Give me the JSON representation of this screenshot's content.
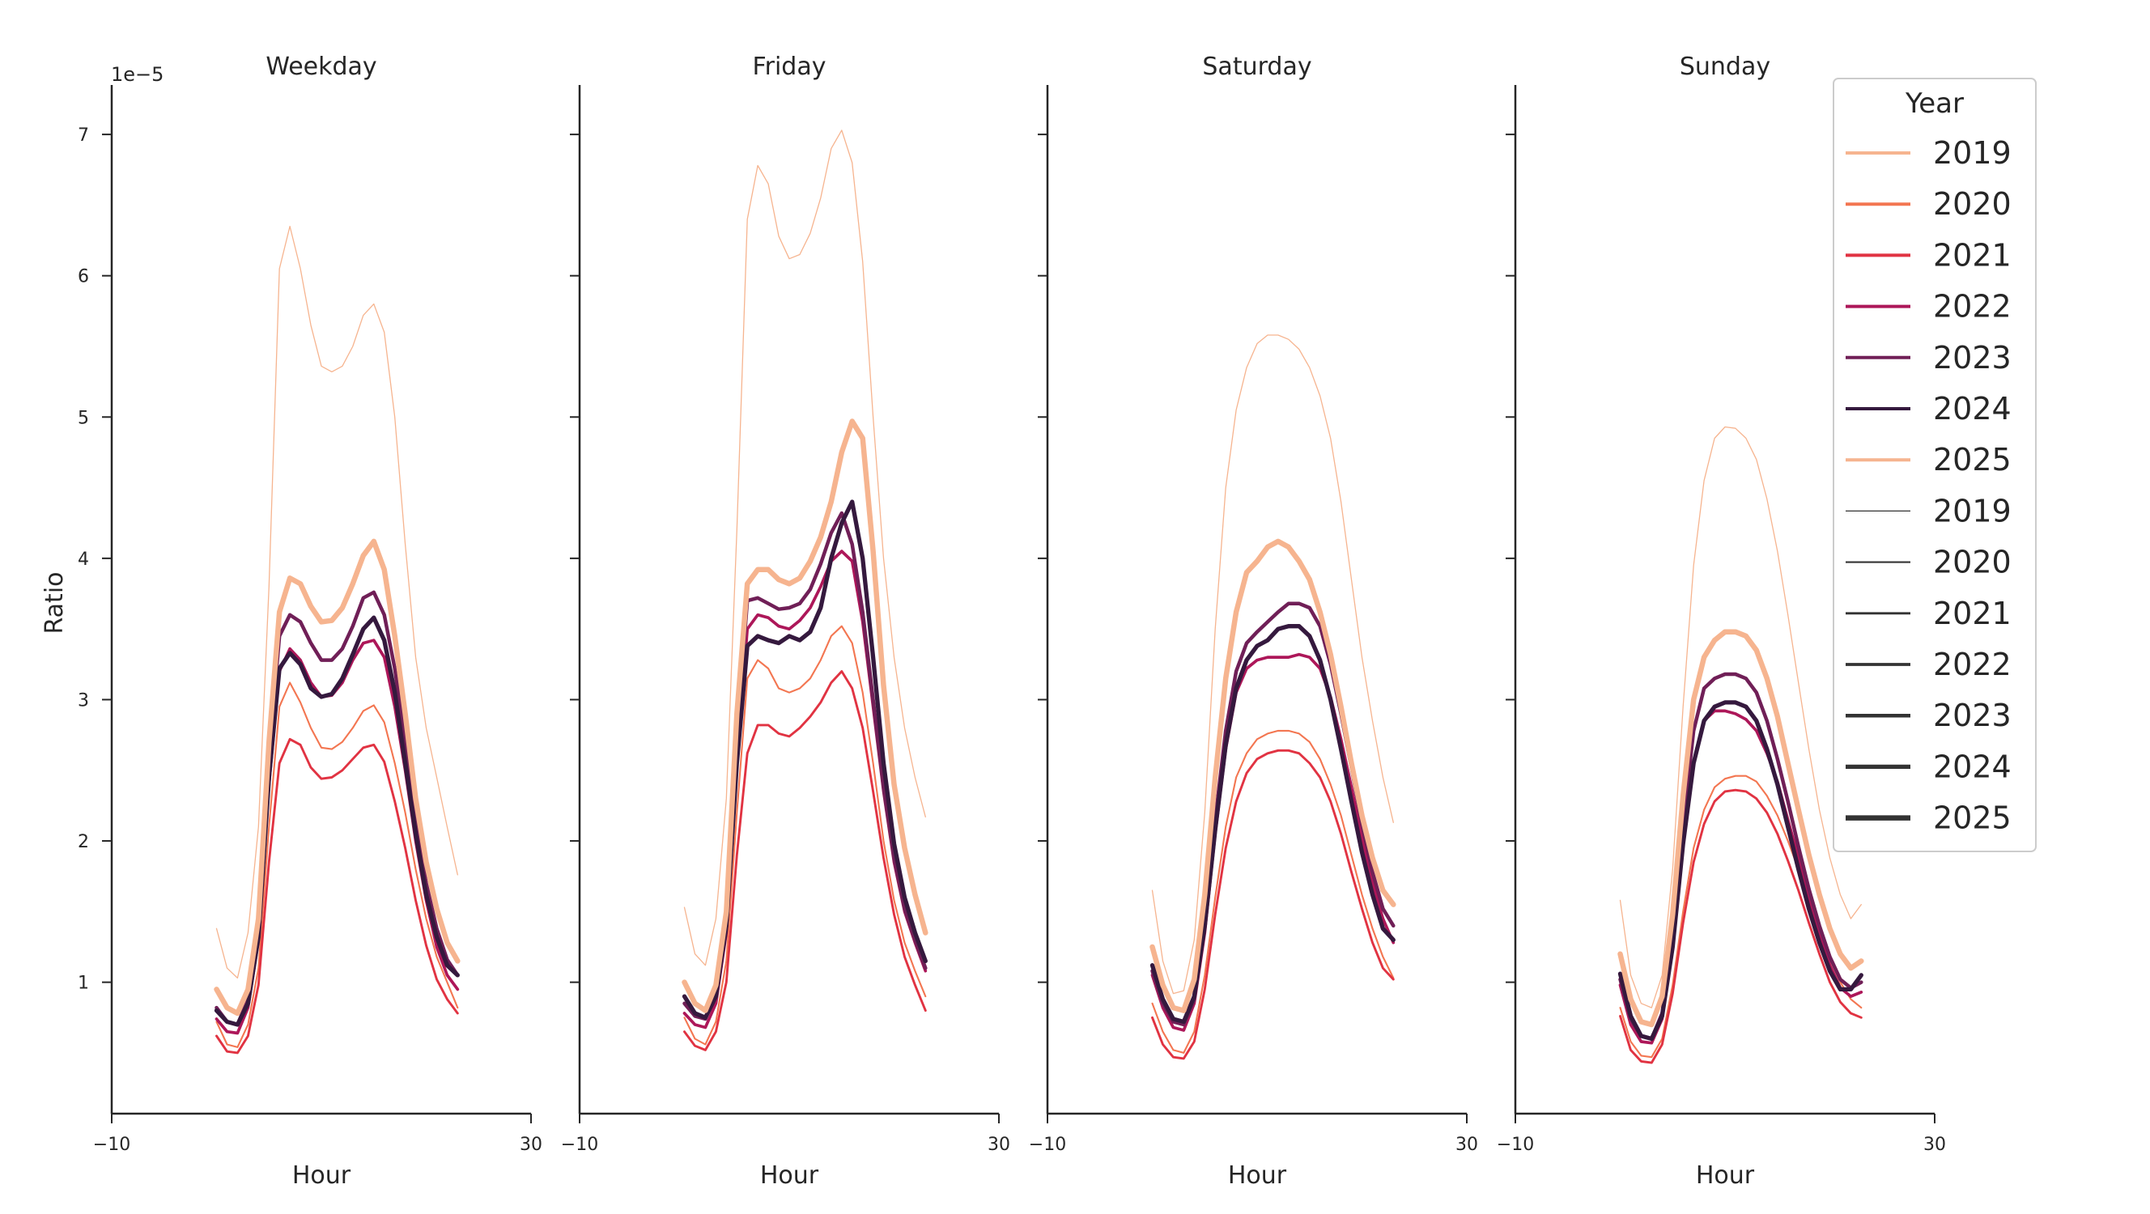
{
  "chart_data": {
    "type": "line",
    "ylabel": "Ratio",
    "xlabel": "Hour",
    "y_offset_label": "1e−5",
    "xlim": [
      -10,
      30
    ],
    "xticks": [
      -10,
      30
    ],
    "xtick_labels": [
      "−10",
      "30"
    ],
    "ylim": [
      0.07,
      7.35
    ],
    "yticks": [
      1,
      2,
      3,
      4,
      5,
      6,
      7
    ],
    "ytick_labels": [
      "1",
      "2",
      "3",
      "4",
      "5",
      "6",
      "7"
    ],
    "x": [
      0,
      1,
      2,
      3,
      4,
      5,
      6,
      7,
      8,
      9,
      10,
      11,
      12,
      13,
      14,
      15,
      16,
      17,
      18,
      19,
      20,
      21,
      22,
      23
    ],
    "grid": false,
    "legend": {
      "title": "Year",
      "placement": "upper right",
      "hue_entries": [
        {
          "label": "2019",
          "color": "#f6b48f"
        },
        {
          "label": "2020",
          "color": "#f37651"
        },
        {
          "label": "2021",
          "color": "#e13342"
        },
        {
          "label": "2022",
          "color": "#ad1759"
        },
        {
          "label": "2023",
          "color": "#701f57"
        },
        {
          "label": "2024",
          "color": "#35193e"
        },
        {
          "label": "2025",
          "color": "#f6b48f"
        }
      ],
      "size_entries": [
        {
          "label": "2019",
          "color": "#333333"
        },
        {
          "label": "2020",
          "color": "#333333"
        },
        {
          "label": "2021",
          "color": "#333333"
        },
        {
          "label": "2022",
          "color": "#333333"
        },
        {
          "label": "2023",
          "color": "#333333"
        },
        {
          "label": "2024",
          "color": "#333333"
        },
        {
          "label": "2025",
          "color": "#333333"
        }
      ]
    },
    "panels": [
      {
        "title": "Weekday",
        "series": [
          {
            "name": "2019",
            "color": "#f6b48f",
            "values": [
              1.38,
              1.1,
              1.03,
              1.35,
              2.1,
              3.8,
              6.05,
              6.35,
              6.05,
              5.65,
              5.36,
              5.32,
              5.36,
              5.5,
              5.72,
              5.8,
              5.6,
              5.0,
              4.1,
              3.3,
              2.8,
              2.45,
              2.1,
              1.76
            ]
          },
          {
            "name": "2020",
            "color": "#f37651",
            "values": [
              0.72,
              0.56,
              0.54,
              0.7,
              1.1,
              2.1,
              2.95,
              3.12,
              2.98,
              2.8,
              2.66,
              2.65,
              2.7,
              2.8,
              2.92,
              2.96,
              2.84,
              2.55,
              2.2,
              1.8,
              1.45,
              1.18,
              1.0,
              0.82
            ]
          },
          {
            "name": "2021",
            "color": "#e13342",
            "values": [
              0.62,
              0.51,
              0.5,
              0.62,
              0.98,
              1.85,
              2.55,
              2.72,
              2.68,
              2.52,
              2.44,
              2.45,
              2.5,
              2.58,
              2.66,
              2.68,
              2.56,
              2.28,
              1.95,
              1.58,
              1.26,
              1.02,
              0.88,
              0.78
            ]
          },
          {
            "name": "2022",
            "color": "#ad1759",
            "values": [
              0.74,
              0.65,
              0.64,
              0.82,
              1.3,
              2.4,
              3.2,
              3.36,
              3.28,
              3.12,
              3.02,
              3.03,
              3.12,
              3.28,
              3.4,
              3.42,
              3.3,
              2.95,
              2.5,
              2.0,
              1.58,
              1.25,
              1.05,
              0.95
            ]
          },
          {
            "name": "2023",
            "color": "#701f57",
            "values": [
              0.82,
              0.72,
              0.7,
              0.88,
              1.4,
              2.6,
              3.45,
              3.6,
              3.55,
              3.4,
              3.28,
              3.28,
              3.36,
              3.52,
              3.72,
              3.76,
              3.6,
              3.22,
              2.7,
              2.15,
              1.7,
              1.38,
              1.16,
              1.05
            ]
          },
          {
            "name": "2024",
            "color": "#35193e",
            "values": [
              0.8,
              0.72,
              0.7,
              0.85,
              1.32,
              2.45,
              3.22,
              3.33,
              3.25,
              3.08,
              3.02,
              3.04,
              3.15,
              3.32,
              3.5,
              3.58,
              3.42,
              3.05,
              2.55,
              2.05,
              1.62,
              1.32,
              1.12,
              1.05
            ]
          },
          {
            "name": "2025",
            "color": "#f6b48f",
            "values": [
              0.95,
              0.82,
              0.78,
              0.95,
              1.45,
              2.7,
              3.62,
              3.86,
              3.82,
              3.66,
              3.55,
              3.56,
              3.65,
              3.82,
              4.02,
              4.12,
              3.92,
              3.45,
              2.9,
              2.3,
              1.85,
              1.52,
              1.28,
              1.15
            ]
          }
        ]
      },
      {
        "title": "Friday",
        "series": [
          {
            "name": "2019",
            "color": "#f6b48f",
            "values": [
              1.53,
              1.2,
              1.12,
              1.45,
              2.3,
              4.2,
              6.4,
              6.78,
              6.65,
              6.28,
              6.12,
              6.15,
              6.3,
              6.55,
              6.9,
              7.03,
              6.8,
              6.1,
              5.0,
              4.0,
              3.3,
              2.8,
              2.45,
              2.17
            ]
          },
          {
            "name": "2020",
            "color": "#f37651",
            "values": [
              0.75,
              0.6,
              0.56,
              0.72,
              1.15,
              2.2,
              3.15,
              3.28,
              3.22,
              3.08,
              3.05,
              3.08,
              3.15,
              3.28,
              3.45,
              3.52,
              3.4,
              3.05,
              2.55,
              2.0,
              1.58,
              1.28,
              1.08,
              0.9
            ]
          },
          {
            "name": "2021",
            "color": "#e13342",
            "values": [
              0.65,
              0.55,
              0.52,
              0.65,
              1.0,
              1.9,
              2.62,
              2.82,
              2.82,
              2.76,
              2.74,
              2.8,
              2.88,
              2.98,
              3.12,
              3.2,
              3.08,
              2.8,
              2.35,
              1.88,
              1.48,
              1.18,
              0.98,
              0.8
            ]
          },
          {
            "name": "2022",
            "color": "#ad1759",
            "values": [
              0.78,
              0.7,
              0.68,
              0.85,
              1.35,
              2.55,
              3.5,
              3.6,
              3.58,
              3.52,
              3.5,
              3.56,
              3.65,
              3.8,
              3.98,
              4.05,
              3.98,
              3.55,
              2.95,
              2.35,
              1.85,
              1.5,
              1.28,
              1.08
            ]
          },
          {
            "name": "2023",
            "color": "#701f57",
            "values": [
              0.85,
              0.76,
              0.74,
              0.92,
              1.45,
              2.75,
              3.7,
              3.72,
              3.68,
              3.64,
              3.65,
              3.68,
              3.78,
              3.96,
              4.18,
              4.32,
              4.1,
              3.62,
              3.0,
              2.38,
              1.88,
              1.52,
              1.3,
              1.1
            ]
          },
          {
            "name": "2024",
            "color": "#35193e",
            "values": [
              0.9,
              0.78,
              0.75,
              0.9,
              1.4,
              2.55,
              3.38,
              3.45,
              3.42,
              3.4,
              3.45,
              3.42,
              3.48,
              3.65,
              4.0,
              4.25,
              4.4,
              4.0,
              3.3,
              2.55,
              1.98,
              1.6,
              1.35,
              1.15
            ]
          },
          {
            "name": "2025",
            "color": "#f6b48f",
            "values": [
              1.0,
              0.85,
              0.8,
              0.98,
              1.5,
              2.9,
              3.82,
              3.92,
              3.92,
              3.85,
              3.82,
              3.86,
              3.98,
              4.15,
              4.4,
              4.75,
              4.97,
              4.85,
              4.05,
              3.1,
              2.4,
              1.95,
              1.62,
              1.35
            ]
          }
        ]
      },
      {
        "title": "Saturday",
        "series": [
          {
            "name": "2019",
            "color": "#f6b48f",
            "values": [
              1.65,
              1.15,
              0.92,
              0.94,
              1.3,
              2.2,
              3.5,
              4.5,
              5.05,
              5.35,
              5.52,
              5.58,
              5.58,
              5.55,
              5.48,
              5.35,
              5.15,
              4.85,
              4.4,
              3.85,
              3.3,
              2.85,
              2.45,
              2.13
            ]
          },
          {
            "name": "2020",
            "color": "#f37651",
            "values": [
              0.85,
              0.65,
              0.52,
              0.5,
              0.65,
              1.05,
              1.6,
              2.1,
              2.45,
              2.62,
              2.72,
              2.76,
              2.78,
              2.78,
              2.76,
              2.7,
              2.58,
              2.4,
              2.18,
              1.9,
              1.62,
              1.38,
              1.18,
              1.03
            ]
          },
          {
            "name": "2021",
            "color": "#e13342",
            "values": [
              0.75,
              0.56,
              0.47,
              0.46,
              0.58,
              0.95,
              1.48,
              1.95,
              2.28,
              2.48,
              2.58,
              2.62,
              2.64,
              2.64,
              2.62,
              2.55,
              2.45,
              2.28,
              2.05,
              1.78,
              1.52,
              1.28,
              1.1,
              1.02
            ]
          },
          {
            "name": "2022",
            "color": "#ad1759",
            "values": [
              1.05,
              0.82,
              0.68,
              0.66,
              0.85,
              1.35,
              2.05,
              2.65,
              3.05,
              3.22,
              3.28,
              3.3,
              3.3,
              3.3,
              3.32,
              3.3,
              3.22,
              3.02,
              2.72,
              2.38,
              2.02,
              1.7,
              1.45,
              1.28
            ]
          },
          {
            "name": "2023",
            "color": "#701f57",
            "values": [
              1.08,
              0.85,
              0.72,
              0.7,
              0.88,
              1.42,
              2.15,
              2.78,
              3.2,
              3.4,
              3.48,
              3.55,
              3.62,
              3.68,
              3.68,
              3.65,
              3.52,
              3.25,
              2.9,
              2.52,
              2.12,
              1.78,
              1.52,
              1.4
            ]
          },
          {
            "name": "2024",
            "color": "#35193e",
            "values": [
              1.12,
              0.88,
              0.74,
              0.72,
              0.9,
              1.4,
              2.08,
              2.68,
              3.08,
              3.28,
              3.38,
              3.42,
              3.5,
              3.52,
              3.52,
              3.45,
              3.28,
              3.0,
              2.65,
              2.28,
              1.92,
              1.62,
              1.38,
              1.3
            ]
          },
          {
            "name": "2025",
            "color": "#f6b48f",
            "values": [
              1.25,
              0.98,
              0.82,
              0.8,
              1.02,
              1.62,
              2.45,
              3.15,
              3.62,
              3.9,
              3.98,
              4.08,
              4.12,
              4.08,
              3.98,
              3.85,
              3.62,
              3.32,
              2.95,
              2.55,
              2.18,
              1.88,
              1.65,
              1.55
            ]
          }
        ]
      },
      {
        "title": "Sunday",
        "series": [
          {
            "name": "2019",
            "color": "#f6b48f",
            "values": [
              1.58,
              1.05,
              0.85,
              0.82,
              1.05,
              1.8,
              2.95,
              3.95,
              4.55,
              4.85,
              4.93,
              4.92,
              4.85,
              4.7,
              4.42,
              4.05,
              3.6,
              3.12,
              2.65,
              2.22,
              1.88,
              1.62,
              1.45,
              1.55
            ]
          },
          {
            "name": "2020",
            "color": "#f37651",
            "values": [
              0.82,
              0.58,
              0.48,
              0.47,
              0.6,
              0.98,
              1.5,
              1.95,
              2.22,
              2.38,
              2.44,
              2.46,
              2.46,
              2.42,
              2.32,
              2.18,
              2.0,
              1.8,
              1.58,
              1.36,
              1.16,
              1.0,
              0.88,
              0.82
            ]
          },
          {
            "name": "2021",
            "color": "#e13342",
            "values": [
              0.76,
              0.52,
              0.44,
              0.43,
              0.56,
              0.92,
              1.42,
              1.85,
              2.12,
              2.28,
              2.35,
              2.36,
              2.35,
              2.3,
              2.2,
              2.05,
              1.86,
              1.65,
              1.42,
              1.2,
              1.0,
              0.86,
              0.78,
              0.75
            ]
          },
          {
            "name": "2022",
            "color": "#ad1759",
            "values": [
              0.98,
              0.7,
              0.58,
              0.57,
              0.74,
              1.25,
              1.98,
              2.55,
              2.85,
              2.92,
              2.92,
              2.9,
              2.86,
              2.78,
              2.62,
              2.42,
              2.15,
              1.88,
              1.6,
              1.34,
              1.12,
              0.96,
              0.9,
              0.93
            ]
          },
          {
            "name": "2023",
            "color": "#701f57",
            "values": [
              1.02,
              0.74,
              0.62,
              0.6,
              0.78,
              1.32,
              2.12,
              2.78,
              3.08,
              3.15,
              3.18,
              3.18,
              3.15,
              3.05,
              2.85,
              2.58,
              2.28,
              1.96,
              1.66,
              1.4,
              1.18,
              1.02,
              0.96,
              1.0
            ]
          },
          {
            "name": "2024",
            "color": "#35193e",
            "values": [
              1.06,
              0.76,
              0.62,
              0.6,
              0.76,
              1.25,
              1.98,
              2.55,
              2.85,
              2.95,
              2.98,
              2.98,
              2.95,
              2.85,
              2.65,
              2.4,
              2.1,
              1.8,
              1.52,
              1.28,
              1.08,
              0.95,
              0.95,
              1.05
            ]
          },
          {
            "name": "2025",
            "color": "#f6b48f",
            "values": [
              1.2,
              0.88,
              0.72,
              0.7,
              0.9,
              1.48,
              2.32,
              3.0,
              3.3,
              3.42,
              3.48,
              3.48,
              3.45,
              3.35,
              3.15,
              2.88,
              2.55,
              2.22,
              1.9,
              1.62,
              1.38,
              1.2,
              1.1,
              1.15
            ]
          }
        ]
      }
    ]
  }
}
